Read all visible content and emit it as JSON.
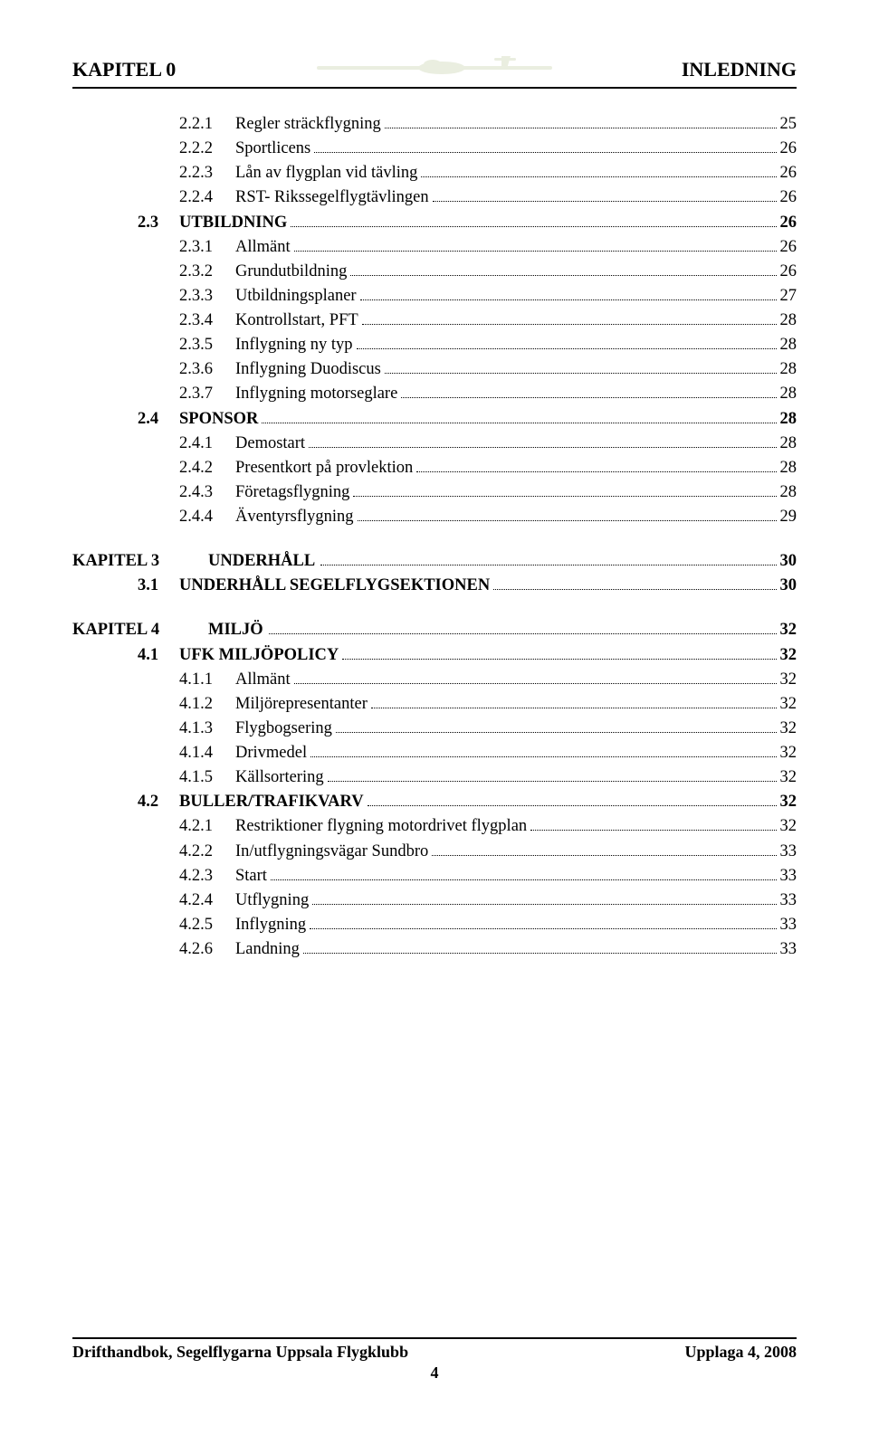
{
  "header": {
    "left": "KAPITEL 0",
    "right": "INLEDNING"
  },
  "toc": [
    {
      "kind": "item",
      "level": "a",
      "num": "2.2.1",
      "title": "Regler sträckflygning",
      "page": "25",
      "bold": false
    },
    {
      "kind": "item",
      "level": "a",
      "num": "2.2.2",
      "title": "Sportlicens",
      "page": "26",
      "bold": false
    },
    {
      "kind": "item",
      "level": "a",
      "num": "2.2.3",
      "title": "Lån av flygplan vid tävling",
      "page": "26",
      "bold": false
    },
    {
      "kind": "item",
      "level": "a",
      "num": "2.2.4",
      "title": "RST- Rikssegelflygtävlingen",
      "page": "26",
      "bold": false
    },
    {
      "kind": "item",
      "level": "b",
      "num": "2.3",
      "title": "UTBILDNING",
      "page": "26",
      "bold": true
    },
    {
      "kind": "item",
      "level": "a",
      "num": "2.3.1",
      "title": "Allmänt",
      "page": "26",
      "bold": false
    },
    {
      "kind": "item",
      "level": "a",
      "num": "2.3.2",
      "title": "Grundutbildning",
      "page": "26",
      "bold": false
    },
    {
      "kind": "item",
      "level": "a",
      "num": "2.3.3",
      "title": "Utbildningsplaner",
      "page": "27",
      "bold": false
    },
    {
      "kind": "item",
      "level": "a",
      "num": "2.3.4",
      "title": "Kontrollstart, PFT",
      "page": "28",
      "bold": false
    },
    {
      "kind": "item",
      "level": "a",
      "num": "2.3.5",
      "title": "Inflygning ny typ",
      "page": "28",
      "bold": false
    },
    {
      "kind": "item",
      "level": "a",
      "num": "2.3.6",
      "title": "Inflygning Duodiscus",
      "page": "28",
      "bold": false
    },
    {
      "kind": "item",
      "level": "a",
      "num": "2.3.7",
      "title": "Inflygning motorseglare",
      "page": "28",
      "bold": false
    },
    {
      "kind": "item",
      "level": "b",
      "num": "2.4",
      "title": "SPONSOR",
      "page": "28",
      "bold": true
    },
    {
      "kind": "item",
      "level": "a",
      "num": "2.4.1",
      "title": "Demostart",
      "page": "28",
      "bold": false
    },
    {
      "kind": "item",
      "level": "a",
      "num": "2.4.2",
      "title": "Presentkort på provlektion",
      "page": "28",
      "bold": false
    },
    {
      "kind": "item",
      "level": "a",
      "num": "2.4.3",
      "title": "Företagsflygning",
      "page": "28",
      "bold": false
    },
    {
      "kind": "item",
      "level": "a",
      "num": "2.4.4",
      "title": "Äventyrsflygning",
      "page": "29",
      "bold": false
    },
    {
      "kind": "gap",
      "size": "m"
    },
    {
      "kind": "kapitel",
      "kap": "KAPITEL 3",
      "num": "",
      "title": "UNDERHÅLL",
      "page": "30",
      "bold": true
    },
    {
      "kind": "item",
      "level": "b",
      "num": "3.1",
      "title": "UNDERHÅLL SEGELFLYGSEKTIONEN",
      "page": "30",
      "bold": true
    },
    {
      "kind": "gap",
      "size": "m"
    },
    {
      "kind": "kapitel",
      "kap": "KAPITEL 4",
      "num": "",
      "title": "MILJÖ",
      "page": "32",
      "bold": true
    },
    {
      "kind": "item",
      "level": "b",
      "num": "4.1",
      "title": "UFK MILJÖPOLICY",
      "page": "32",
      "bold": true
    },
    {
      "kind": "item",
      "level": "a",
      "num": "4.1.1",
      "title": "Allmänt",
      "page": "32",
      "bold": false
    },
    {
      "kind": "item",
      "level": "a",
      "num": "4.1.2",
      "title": "Miljörepresentanter",
      "page": "32",
      "bold": false
    },
    {
      "kind": "item",
      "level": "a",
      "num": "4.1.3",
      "title": "Flygbogsering",
      "page": "32",
      "bold": false
    },
    {
      "kind": "item",
      "level": "a",
      "num": "4.1.4",
      "title": "Drivmedel",
      "page": "32",
      "bold": false
    },
    {
      "kind": "item",
      "level": "a",
      "num": "4.1.5",
      "title": "Källsortering",
      "page": "32",
      "bold": false
    },
    {
      "kind": "item",
      "level": "b",
      "num": "4.2",
      "title": "BULLER/TRAFIKVARV",
      "page": "32",
      "bold": true
    },
    {
      "kind": "item",
      "level": "a",
      "num": "4.2.1",
      "title": "Restriktioner flygning motordrivet flygplan",
      "page": "32",
      "bold": false
    },
    {
      "kind": "item",
      "level": "a",
      "num": "4.2.2",
      "title": "In/utflygningsvägar Sundbro",
      "page": "33",
      "bold": false
    },
    {
      "kind": "item",
      "level": "a",
      "num": "4.2.3",
      "title": "Start",
      "page": "33",
      "bold": false
    },
    {
      "kind": "item",
      "level": "a",
      "num": "4.2.4",
      "title": "Utflygning",
      "page": "33",
      "bold": false
    },
    {
      "kind": "item",
      "level": "a",
      "num": "4.2.5",
      "title": "Inflygning",
      "page": "33",
      "bold": false
    },
    {
      "kind": "item",
      "level": "a",
      "num": "4.2.6",
      "title": "Landning",
      "page": "33",
      "bold": false
    }
  ],
  "footer": {
    "left": "Drifthandbok, Segelflygarna Uppsala Flygklubb",
    "right": "Upplaga 4, 2008",
    "pageno": "4"
  },
  "plane_color": "#c5cfa9"
}
